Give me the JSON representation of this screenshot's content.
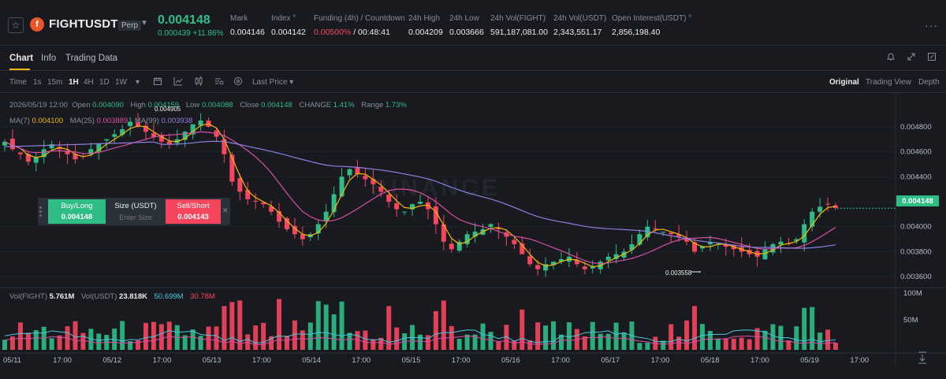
{
  "header": {
    "symbol": "FIGHTUSDT",
    "contract_badge": "Perp",
    "last_price": "0.004148",
    "change": "0.000439 +11.86%",
    "stats": [
      {
        "label": "Mark",
        "value": "0.004146"
      },
      {
        "label": "Index °",
        "value": "0.004142"
      },
      {
        "label": "Funding (4h) / Countdown",
        "value_rate": "0.00500%",
        "value_countdown": " / 00:48:41"
      },
      {
        "label": "24h High",
        "value": "0.004209"
      },
      {
        "label": "24h Low",
        "value": "0.003666"
      },
      {
        "label": "24h Vol(FIGHT)",
        "value": "591,187,081.00"
      },
      {
        "label": "24h Vol(USDT)",
        "value": "2,343,551.17"
      },
      {
        "label": "Open Interest(USDT) °",
        "value": "2,856,198.40"
      }
    ],
    "icons": {
      "favorite": "star-icon",
      "more": "more-icon",
      "symbol_logo": "fight-logo"
    },
    "colors": {
      "up": "#2ebd85",
      "down": "#f6465d",
      "accent": "#f0b90b"
    }
  },
  "tabs": [
    {
      "label": "Chart",
      "active": true
    },
    {
      "label": "Info"
    },
    {
      "label": "Trading Data"
    }
  ],
  "toolbar": {
    "time_label": "Time",
    "intervals": [
      "1s",
      "15m",
      "1H",
      "4H",
      "1D",
      "1W"
    ],
    "active_interval": "1H",
    "price_type": "Last Price",
    "views": [
      "Original",
      "Trading View",
      "Depth"
    ],
    "active_view": "Original"
  },
  "chart": {
    "info": {
      "date": "2026/05/19 12:00",
      "open_label": "Open",
      "open": "0.004090",
      "high_label": "High",
      "high": "0.004159",
      "low_label": "Low",
      "low": "0.004088",
      "close_label": "Close",
      "close": "0.004148",
      "change_label": "CHANGE",
      "change": "1.41%",
      "range_label": "Range",
      "range": "1.73%"
    },
    "ma": {
      "ma7": "MA(7)",
      "ma7_value": "0.004100",
      "ma25": "MA(25)",
      "ma25_value": "0.003889",
      "ma99": "MA(99)",
      "ma99_value": "0.003938"
    },
    "volume": {
      "fight_label": "Vol(FIGHT)",
      "fight_value": "5.761M",
      "usdt_label": "Vol(USDT)",
      "usdt_value": "23.818K",
      "usdt_ma1": "50.699M",
      "usdt_ma2": "30.78M"
    },
    "current_price_tag": "0.004148",
    "high_marker": "0.004905",
    "low_marker": "0.003558",
    "watermark": "BINANCE"
  },
  "chart_data": {
    "type": "candlestick",
    "y_ticks": [
      "0.004800",
      "0.004600",
      "0.004400",
      "0.004200",
      "0.004000",
      "0.003800",
      "0.003600"
    ],
    "y_range": [
      0.0035,
      0.0049
    ],
    "vol_ticks": [
      "100M",
      "50M"
    ],
    "x_ticks": [
      "05/11",
      "17:00",
      "05/12",
      "17:00",
      "05/13",
      "17:00",
      "05/14",
      "17:00",
      "05/15",
      "17:00",
      "05/16",
      "17:00",
      "05/17",
      "17:00",
      "05/18",
      "17:00",
      "05/19",
      "17:00"
    ],
    "close_path": [
      0.00468,
      0.00462,
      0.00458,
      0.00452,
      0.00456,
      0.00462,
      0.00466,
      0.00462,
      0.00458,
      0.00454,
      0.00456,
      0.00462,
      0.00466,
      0.0047,
      0.00474,
      0.00478,
      0.00484,
      0.0048,
      0.00476,
      0.00472,
      0.00468,
      0.00466,
      0.0047,
      0.00476,
      0.00482,
      0.00485,
      0.0048,
      0.00472,
      0.00458,
      0.00436,
      0.00428,
      0.00422,
      0.0042,
      0.00418,
      0.00412,
      0.00404,
      0.00398,
      0.00394,
      0.0039,
      0.00394,
      0.00402,
      0.00412,
      0.00426,
      0.0044,
      0.00446,
      0.00442,
      0.00438,
      0.00434,
      0.00428,
      0.0042,
      0.00414,
      0.00412,
      0.00418,
      0.0042,
      0.00414,
      0.00402,
      0.00388,
      0.00382,
      0.00388,
      0.00394,
      0.00396,
      0.00398,
      0.00402,
      0.00398,
      0.00392,
      0.00386,
      0.00378,
      0.0037,
      0.00366,
      0.0037,
      0.00372,
      0.00374,
      0.00376,
      0.0037,
      0.00366,
      0.00368,
      0.00372,
      0.00376,
      0.00378,
      0.0038,
      0.00386,
      0.00394,
      0.004,
      0.00398,
      0.00396,
      0.00394,
      0.00392,
      0.00388,
      0.0038,
      0.00384,
      0.00388,
      0.00386,
      0.00384,
      0.00382,
      0.0038,
      0.00378,
      0.00376,
      0.00382,
      0.00386,
      0.00388,
      0.00386,
      0.0039,
      0.00402,
      0.00412,
      0.00416,
      0.00418,
      0.00415
    ]
  }
}
